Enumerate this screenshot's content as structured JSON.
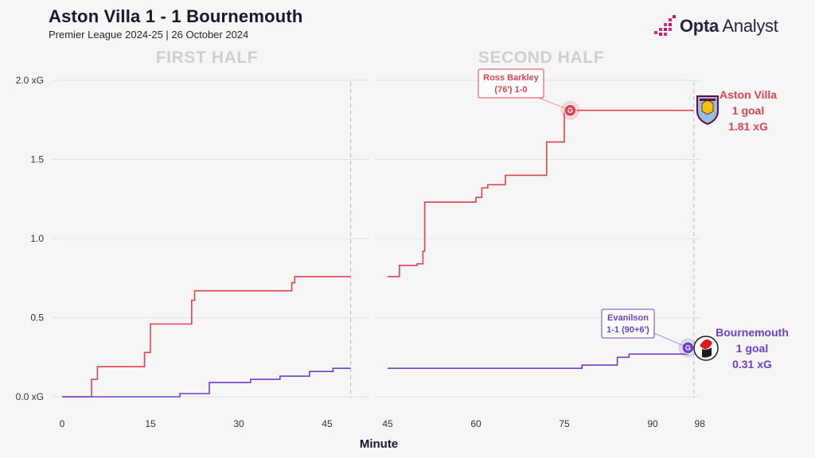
{
  "header": {
    "title": "Aston Villa 1 - 1 Bournemouth",
    "subtitle": "Premier League 2024-25 | 26 October 2024"
  },
  "brand": {
    "bold": "Opta",
    "light": " Analyst"
  },
  "colors": {
    "villa": "#e0424f",
    "bournemouth": "#6a3fc9",
    "grid": "#e2e2e2",
    "labels": "#cfcfcf"
  },
  "chart_data": {
    "type": "line",
    "step": true,
    "xlabel": "Minute",
    "ylabel": "",
    "ylim": [
      0,
      2.0
    ],
    "yticks": [
      "0.0 xG",
      "0.5",
      "1.0",
      "1.5",
      "2.0 xG"
    ],
    "grid": true,
    "panels": [
      {
        "name": "FIRST HALF",
        "xlim": [
          0,
          49
        ],
        "xticks": [
          0,
          15,
          30,
          45
        ],
        "end_marker": 49
      },
      {
        "name": "SECOND HALF",
        "xlim": [
          45,
          98
        ],
        "xticks": [
          45,
          60,
          75,
          90,
          98
        ],
        "end_marker": 97
      }
    ],
    "series": [
      {
        "name": "Aston Villa",
        "color": "#e0424f",
        "first_half": [
          [
            0,
            0
          ],
          [
            5,
            0.11
          ],
          [
            6,
            0.19
          ],
          [
            14,
            0.28
          ],
          [
            15,
            0.46
          ],
          [
            22,
            0.61
          ],
          [
            22.5,
            0.67
          ],
          [
            39,
            0.72
          ],
          [
            39.5,
            0.76
          ],
          [
            49,
            0.76
          ]
        ],
        "second_half": [
          [
            45,
            0.76
          ],
          [
            47,
            0.83
          ],
          [
            50,
            0.84
          ],
          [
            51,
            0.92
          ],
          [
            51.3,
            1.23
          ],
          [
            60,
            1.26
          ],
          [
            61,
            1.32
          ],
          [
            62,
            1.34
          ],
          [
            65,
            1.4
          ],
          [
            72,
            1.61
          ],
          [
            75,
            1.81
          ],
          [
            97,
            1.81
          ]
        ],
        "goals_text": "1 goal",
        "xg_text": "1.81 xG"
      },
      {
        "name": "Bournemouth",
        "color": "#6a3fc9",
        "first_half": [
          [
            0,
            0
          ],
          [
            20,
            0.02
          ],
          [
            25,
            0.09
          ],
          [
            32,
            0.11
          ],
          [
            37,
            0.13
          ],
          [
            42,
            0.16
          ],
          [
            46,
            0.18
          ],
          [
            49,
            0.18
          ]
        ],
        "second_half": [
          [
            45,
            0.18
          ],
          [
            78,
            0.2
          ],
          [
            84,
            0.25
          ],
          [
            86,
            0.27
          ],
          [
            96,
            0.31
          ]
        ],
        "goals_text": "1 goal",
        "xg_text": "0.31 xG"
      }
    ],
    "annotations": [
      {
        "series": 0,
        "panel": 1,
        "x": 76,
        "y": 1.81,
        "lines": [
          "Ross Barkley",
          "(76') 1-0"
        ],
        "marker": "G"
      },
      {
        "series": 1,
        "panel": 1,
        "x": 96,
        "y": 0.31,
        "lines": [
          "Evanilson",
          "1-1 (90+6')"
        ],
        "marker": "G"
      }
    ]
  }
}
